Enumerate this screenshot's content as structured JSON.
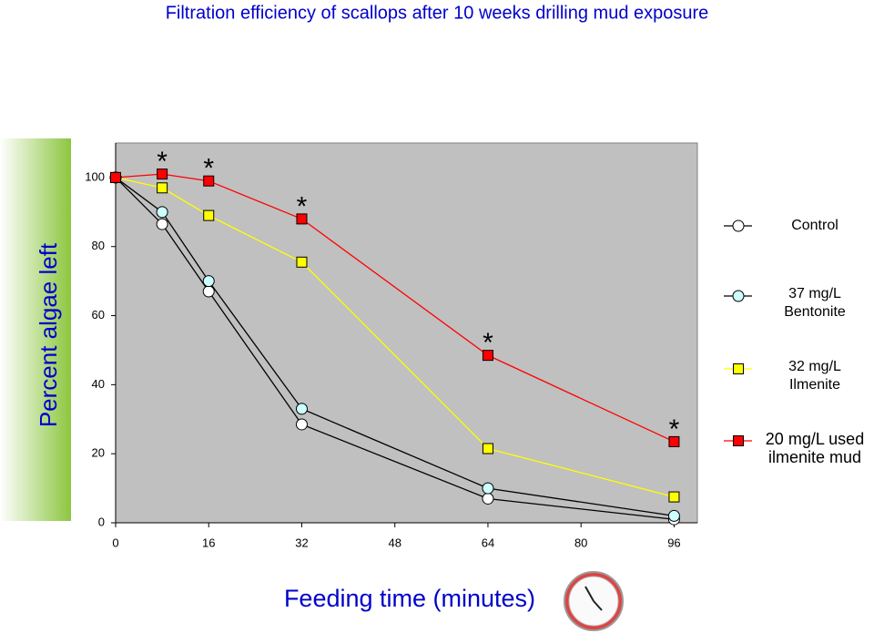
{
  "chart_data": {
    "type": "line",
    "title": "Filtration efficiency of scallops after 10 weeks drilling mud exposure",
    "x_label": "Feeding time (minutes)",
    "y_label": "Percent algae left",
    "x": [
      0,
      8,
      16,
      32,
      64,
      96
    ],
    "xlim": [
      0,
      100
    ],
    "xticks": [
      0,
      16,
      32,
      48,
      64,
      80,
      96
    ],
    "ylim": [
      0,
      110
    ],
    "yticks": [
      0,
      20,
      40,
      60,
      80,
      100
    ],
    "series": [
      {
        "name": "Control",
        "color": "#000000",
        "marker": "circle",
        "marker_color": "#ffffff",
        "values": [
          100,
          86.5,
          67,
          28.5,
          7,
          1
        ]
      },
      {
        "name": "37 mg/L\nBentonite",
        "color": "#000000",
        "marker": "circle",
        "marker_color": "#ccffff",
        "values": [
          100,
          90,
          70,
          33,
          10,
          2
        ]
      },
      {
        "name": "32 mg/L\nIlmenite",
        "color": "#ffff00",
        "marker": "square",
        "marker_color": "#ffff00",
        "values": [
          100,
          97,
          89,
          75.5,
          21.5,
          7.5
        ]
      },
      {
        "name": "20 mg/L used\nilmenite mud",
        "color": "#ff0000",
        "marker": "square",
        "marker_color": "#ff0000",
        "values": [
          100,
          101,
          99,
          88,
          48.5,
          23.5
        ]
      }
    ],
    "annotations": [
      {
        "text": "*",
        "series": 3,
        "point": 1
      },
      {
        "text": "*",
        "series": 3,
        "point": 2
      },
      {
        "text": "*",
        "series": 3,
        "point": 3
      },
      {
        "text": "*",
        "series": 3,
        "point": 4
      },
      {
        "text": "*",
        "series": 3,
        "point": 5
      }
    ]
  }
}
